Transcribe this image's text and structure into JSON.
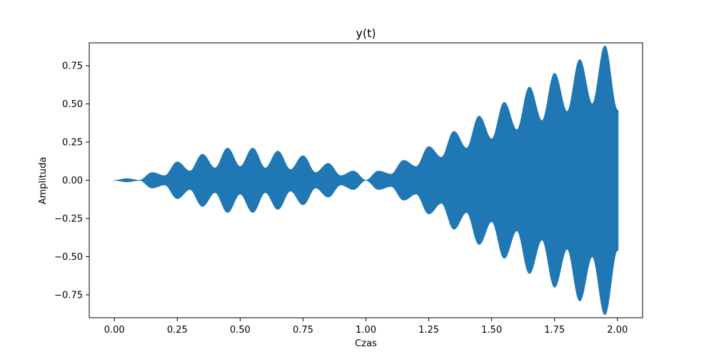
{
  "chart_data": {
    "type": "line",
    "title": "y(t)",
    "xlabel": "Czas",
    "ylabel": "Amplituda",
    "xlim": [
      -0.1,
      2.1
    ],
    "ylim": [
      -0.9,
      0.9
    ],
    "x_ticks": [
      0.0,
      0.25,
      0.5,
      0.75,
      1.0,
      1.25,
      1.5,
      1.75,
      2.0
    ],
    "x_tick_labels": [
      "0.00",
      "0.25",
      "0.50",
      "0.75",
      "1.00",
      "1.25",
      "1.50",
      "1.75",
      "2.00"
    ],
    "y_ticks": [
      -0.75,
      -0.5,
      -0.25,
      0.0,
      0.25,
      0.5,
      0.75
    ],
    "y_tick_labels": [
      "−0.75",
      "−0.50",
      "−0.25",
      "0.00",
      "0.25",
      "0.50",
      "0.75"
    ],
    "grid": false,
    "series": [
      {
        "name": "y(t)",
        "color": "#1f77b4",
        "description_of_envelope": "rapid oscillation",
        "envelope": {
          "t": [
            0.0,
            0.05,
            0.1,
            0.15,
            0.2,
            0.25,
            0.3,
            0.35,
            0.4,
            0.45,
            0.5,
            0.55,
            0.6,
            0.65,
            0.7,
            0.75,
            0.8,
            0.85,
            0.9,
            0.95,
            1.0,
            1.05,
            1.1,
            1.15,
            1.2,
            1.25,
            1.3,
            1.35,
            1.4,
            1.45,
            1.5,
            1.55,
            1.6,
            1.65,
            1.7,
            1.75,
            1.8,
            1.85,
            1.9,
            1.95,
            2.0
          ],
          "upper": [
            0.0,
            0.01,
            0.0,
            0.05,
            0.03,
            0.12,
            0.06,
            0.17,
            0.08,
            0.21,
            0.09,
            0.21,
            0.08,
            0.19,
            0.07,
            0.16,
            0.05,
            0.11,
            0.03,
            0.06,
            0.0,
            0.06,
            0.04,
            0.13,
            0.09,
            0.22,
            0.15,
            0.32,
            0.21,
            0.42,
            0.27,
            0.51,
            0.33,
            0.61,
            0.39,
            0.7,
            0.45,
            0.79,
            0.5,
            0.88,
            0.46
          ],
          "lower": [
            0.0,
            -0.01,
            0.0,
            -0.05,
            -0.03,
            -0.12,
            -0.06,
            -0.17,
            -0.08,
            -0.21,
            -0.09,
            -0.21,
            -0.08,
            -0.19,
            -0.07,
            -0.16,
            -0.05,
            -0.11,
            -0.03,
            -0.06,
            0.0,
            -0.06,
            -0.04,
            -0.13,
            -0.09,
            -0.22,
            -0.15,
            -0.32,
            -0.21,
            -0.42,
            -0.27,
            -0.51,
            -0.33,
            -0.61,
            -0.39,
            -0.7,
            -0.45,
            -0.79,
            -0.5,
            -0.88,
            -0.46
          ]
        }
      }
    ]
  }
}
